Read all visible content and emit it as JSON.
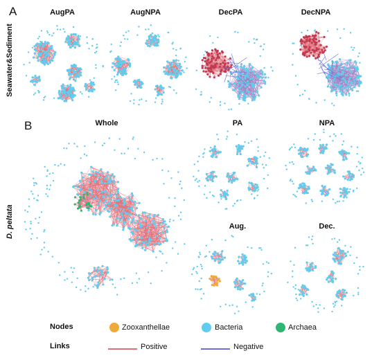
{
  "panelA": {
    "letter": "A",
    "group_label": "Seawater&Sediment",
    "networks": [
      {
        "title": "AugPA"
      },
      {
        "title": "AugNPA"
      },
      {
        "title": "DecPA"
      },
      {
        "title": "DecNPA"
      }
    ]
  },
  "panelB": {
    "letter": "B",
    "group_label": "D. peltata",
    "networks": [
      {
        "title": "Whole"
      },
      {
        "title": "PA"
      },
      {
        "title": "NPA"
      },
      {
        "title": "Aug."
      },
      {
        "title": "Dec."
      }
    ]
  },
  "legend": {
    "nodes_label": "Nodes",
    "links_label": "Links",
    "node_types": [
      {
        "label": "Zooxanthellae",
        "color": "#f0a93a"
      },
      {
        "label": "Bacteria",
        "color": "#62ccee"
      },
      {
        "label": "Archaea",
        "color": "#2fb673"
      }
    ],
    "link_types": [
      {
        "label": "Positive",
        "color": "#e0707a"
      },
      {
        "label": "Negative",
        "color": "#6a6ee0"
      }
    ]
  }
}
